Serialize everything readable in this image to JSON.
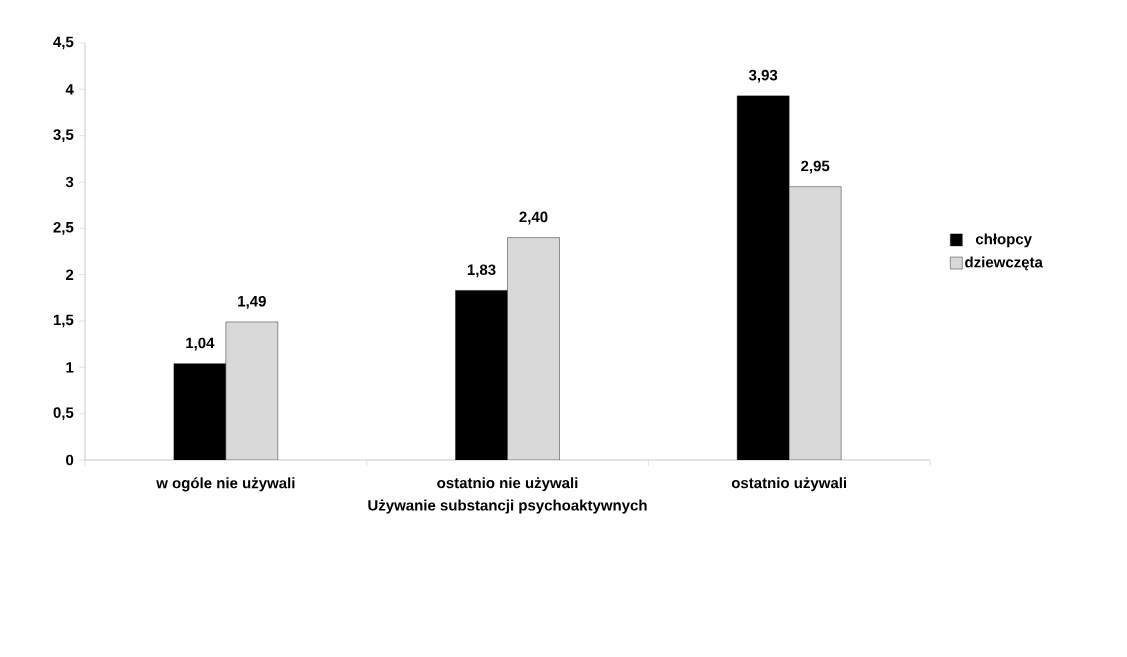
{
  "chart_data": {
    "type": "bar",
    "xlabel": "Używanie substancji psychoaktywnych",
    "categories": [
      "w ogóle nie używali",
      "ostatnio nie używali",
      "ostatnio używali"
    ],
    "series": [
      {
        "name": "chłopcy",
        "color": "#000000",
        "values": [
          1.04,
          1.83,
          3.93
        ],
        "value_labels": [
          "1,04",
          "1,83",
          "3,93"
        ]
      },
      {
        "name": "dziewczęta",
        "color": "#d9d9d9",
        "values": [
          1.49,
          2.4,
          2.95
        ],
        "value_labels": [
          "1,49",
          "2,40",
          "2,95"
        ]
      }
    ],
    "ylim": [
      0,
      4.5
    ],
    "yticks": [
      0,
      {
        "value": 0.5,
        "label": "0,5"
      },
      1,
      {
        "value": 1.5,
        "label": "1,5"
      },
      2,
      {
        "value": 2.5,
        "label": "2,5"
      },
      3,
      {
        "value": 3.5,
        "label": "3,5"
      },
      4,
      {
        "value": 4.5,
        "label": "4,5"
      }
    ],
    "grid": false,
    "legend": "right"
  }
}
